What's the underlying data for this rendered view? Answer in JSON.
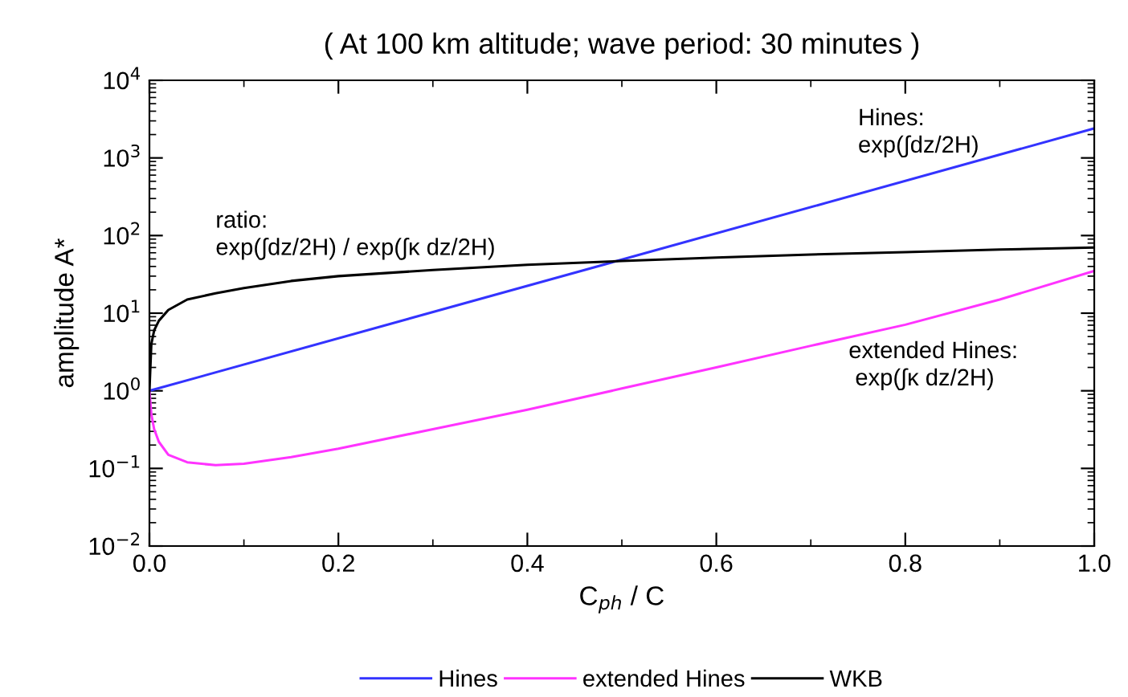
{
  "chart_data": {
    "type": "line",
    "title": "( At 100 km altitude; wave period: 30 minutes )",
    "xlabel": "C$_{ph}$ / C",
    "ylabel": "amplitude A*",
    "series": [
      {
        "name": "Hines",
        "color": "#3333ff",
        "x": [
          0,
          1.0
        ],
        "values": [
          1,
          2400
        ]
      },
      {
        "name": "extended Hines",
        "color": "#ff33ff",
        "x": [
          0,
          0.002,
          0.005,
          0.01,
          0.02,
          0.04,
          0.07,
          0.1,
          0.15,
          0.2,
          0.3,
          0.4,
          0.5,
          0.6,
          0.7,
          0.8,
          0.9,
          1.0
        ],
        "values": [
          1,
          0.5,
          0.32,
          0.22,
          0.15,
          0.12,
          0.11,
          0.115,
          0.14,
          0.18,
          0.32,
          0.57,
          1.07,
          2.0,
          3.8,
          7.1,
          15,
          35
        ]
      },
      {
        "name": "WKB",
        "color": "#000000",
        "x": [
          0,
          0.002,
          0.005,
          0.01,
          0.02,
          0.04,
          0.07,
          0.1,
          0.15,
          0.2,
          0.3,
          0.4,
          0.5,
          0.6,
          0.7,
          0.8,
          0.9,
          1.0
        ],
        "values": [
          1,
          4,
          6,
          8,
          11,
          15,
          18,
          21,
          26,
          30,
          36,
          42,
          47,
          52,
          57,
          61,
          66,
          70
        ]
      }
    ],
    "log": "y",
    "xlim": [
      0,
      1.0
    ],
    "ylim": [
      0.01,
      10000
    ],
    "xticks": [
      {
        "value": 0,
        "label": "0.0"
      },
      0.2,
      0.4,
      0.6,
      0.8,
      {
        "value": 1.0,
        "label": "1.0"
      }
    ],
    "yticks": [
      {
        "value": 0.01,
        "label": "10$^{−2}$"
      },
      {
        "value": 0.1,
        "label": "10$^{−1}$"
      },
      {
        "value": 1,
        "label": "10$^{0}$"
      },
      {
        "value": 10,
        "label": "10$^{1}$"
      },
      {
        "value": 100,
        "label": "10$^{2}$"
      },
      {
        "value": 1000,
        "label": "10$^{3}$"
      },
      {
        "value": 10000,
        "label": "10$^{4}$"
      }
    ],
    "annotations": [
      "Hines:\nexp(∫dz/2H)",
      "ratio:\nexp(∫dz/2H) / exp(∫κ dz/2H)",
      "extended Hines:\n exp(∫κ dz/2H)"
    ],
    "legend": "bottom",
    "grid": false,
    "line_style": "solid",
    "marker": "none"
  }
}
